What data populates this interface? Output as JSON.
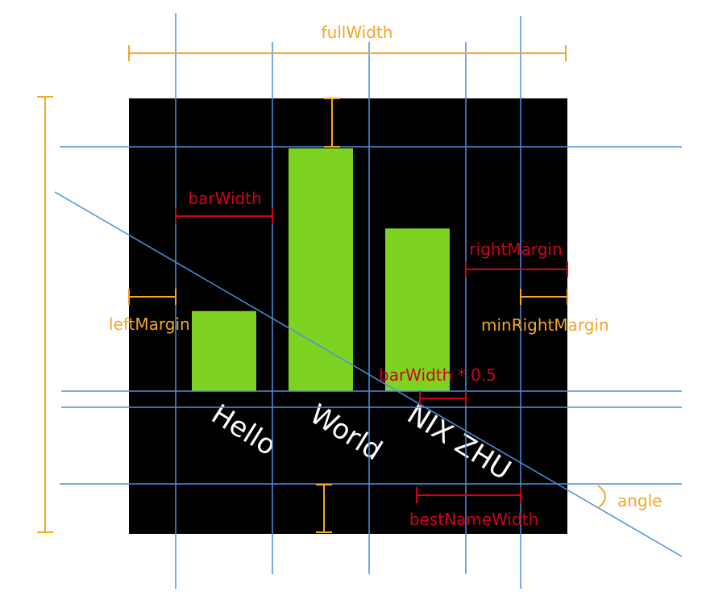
{
  "labels": {
    "full_width": "fullWidth",
    "bar_width": "barWidth",
    "right_margin": "rightMargin",
    "left_margin": "leftMargin",
    "min_right_margin": "minRightMargin",
    "half_bar_width": "barWidth * 0.5",
    "best_name_width": "bestNameWidth",
    "angle": "angle"
  },
  "bars": [
    {
      "name": "Hello",
      "value": 0.33
    },
    {
      "name": "World",
      "value": 1.0
    },
    {
      "name": "NIX ZHU",
      "value": 0.67
    }
  ],
  "colors": {
    "background": "#000000",
    "bar": "#7ed321",
    "guide": "#4a90e2",
    "dimension": "#f5a623",
    "measure": "#d0021b",
    "bar_label": "#ffffff"
  }
}
